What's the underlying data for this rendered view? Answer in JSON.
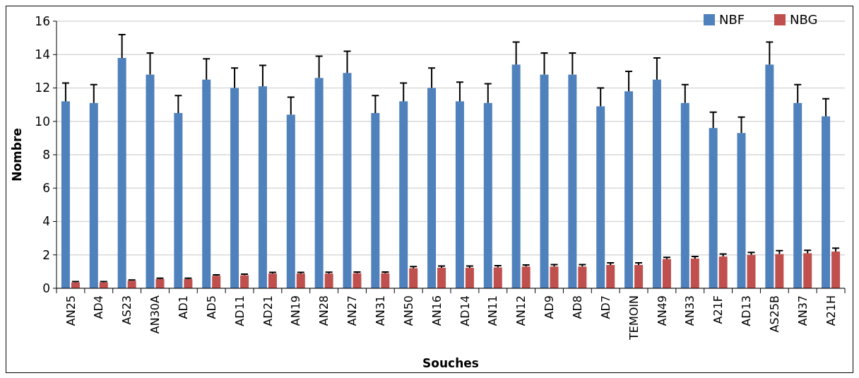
{
  "chart_data": {
    "type": "bar",
    "xlabel": "Souches",
    "ylabel": "Nombre",
    "categories": [
      "AN25",
      "AD4",
      "AS23",
      "AN30A",
      "AD1",
      "AD5",
      "AD11",
      "AD21",
      "AN19",
      "AN28",
      "AN27",
      "AN31",
      "AN50",
      "AN16",
      "AD14",
      "AN11",
      "AN12",
      "AD9",
      "AD8",
      "AD7",
      "TEMOIN",
      "AN49",
      "AN33",
      "A21F",
      "AD13",
      "AS25B",
      "AN37",
      "A21H"
    ],
    "series": [
      {
        "name": "NBF",
        "color": "#4f81bd",
        "values": [
          11.2,
          11.1,
          13.8,
          12.8,
          10.5,
          12.5,
          12.0,
          12.1,
          10.4,
          12.6,
          12.9,
          10.5,
          11.2,
          12.0,
          11.2,
          11.1,
          13.4,
          12.8,
          12.8,
          10.9,
          11.8,
          12.5,
          11.1,
          9.6,
          9.3,
          13.4,
          11.1,
          10.3
        ],
        "errors": [
          [
            11.2,
            12.3
          ],
          [
            11.1,
            12.2
          ],
          [
            13.8,
            15.2
          ],
          [
            12.8,
            14.1
          ],
          [
            10.5,
            11.55
          ],
          [
            12.5,
            13.75
          ],
          [
            12.0,
            13.2
          ],
          [
            12.1,
            13.35
          ],
          [
            10.4,
            11.45
          ],
          [
            12.6,
            13.9
          ],
          [
            12.9,
            14.2
          ],
          [
            10.5,
            11.55
          ],
          [
            11.2,
            12.3
          ],
          [
            12.0,
            13.2
          ],
          [
            11.2,
            12.35
          ],
          [
            11.1,
            12.25
          ],
          [
            13.4,
            14.75
          ],
          [
            12.8,
            14.1
          ],
          [
            12.8,
            14.1
          ],
          [
            10.9,
            12.0
          ],
          [
            11.8,
            13.0
          ],
          [
            12.5,
            13.8
          ],
          [
            11.1,
            12.2
          ],
          [
            9.6,
            10.55
          ],
          [
            9.3,
            10.25
          ],
          [
            13.4,
            14.75
          ],
          [
            11.1,
            12.2
          ],
          [
            10.3,
            11.35
          ]
        ]
      },
      {
        "name": "NBG",
        "color": "#c0504d",
        "values": [
          0.35,
          0.35,
          0.45,
          0.55,
          0.55,
          0.75,
          0.78,
          0.88,
          0.88,
          0.88,
          0.9,
          0.9,
          1.2,
          1.23,
          1.23,
          1.25,
          1.3,
          1.3,
          1.3,
          1.4,
          1.4,
          1.75,
          1.78,
          1.9,
          2.0,
          2.05,
          2.1,
          2.2
        ],
        "errors": [
          [
            0.35,
            0.4
          ],
          [
            0.35,
            0.4
          ],
          [
            0.45,
            0.5
          ],
          [
            0.55,
            0.6
          ],
          [
            0.55,
            0.6
          ],
          [
            0.75,
            0.8
          ],
          [
            0.78,
            0.85
          ],
          [
            0.88,
            0.95
          ],
          [
            0.88,
            0.95
          ],
          [
            0.88,
            0.96
          ],
          [
            0.9,
            0.97
          ],
          [
            0.9,
            0.97
          ],
          [
            1.2,
            1.3
          ],
          [
            1.23,
            1.33
          ],
          [
            1.23,
            1.33
          ],
          [
            1.25,
            1.35
          ],
          [
            1.3,
            1.4
          ],
          [
            1.3,
            1.42
          ],
          [
            1.3,
            1.42
          ],
          [
            1.4,
            1.52
          ],
          [
            1.4,
            1.52
          ],
          [
            1.75,
            1.85
          ],
          [
            1.78,
            1.9
          ],
          [
            1.9,
            2.05
          ],
          [
            2.0,
            2.15
          ],
          [
            2.05,
            2.25
          ],
          [
            2.1,
            2.28
          ],
          [
            2.2,
            2.4
          ]
        ]
      }
    ],
    "ylim": [
      0,
      16
    ],
    "yticks": [
      0,
      2,
      4,
      6,
      8,
      10,
      12,
      14,
      16
    ],
    "grid": "y",
    "legend": "top right"
  }
}
